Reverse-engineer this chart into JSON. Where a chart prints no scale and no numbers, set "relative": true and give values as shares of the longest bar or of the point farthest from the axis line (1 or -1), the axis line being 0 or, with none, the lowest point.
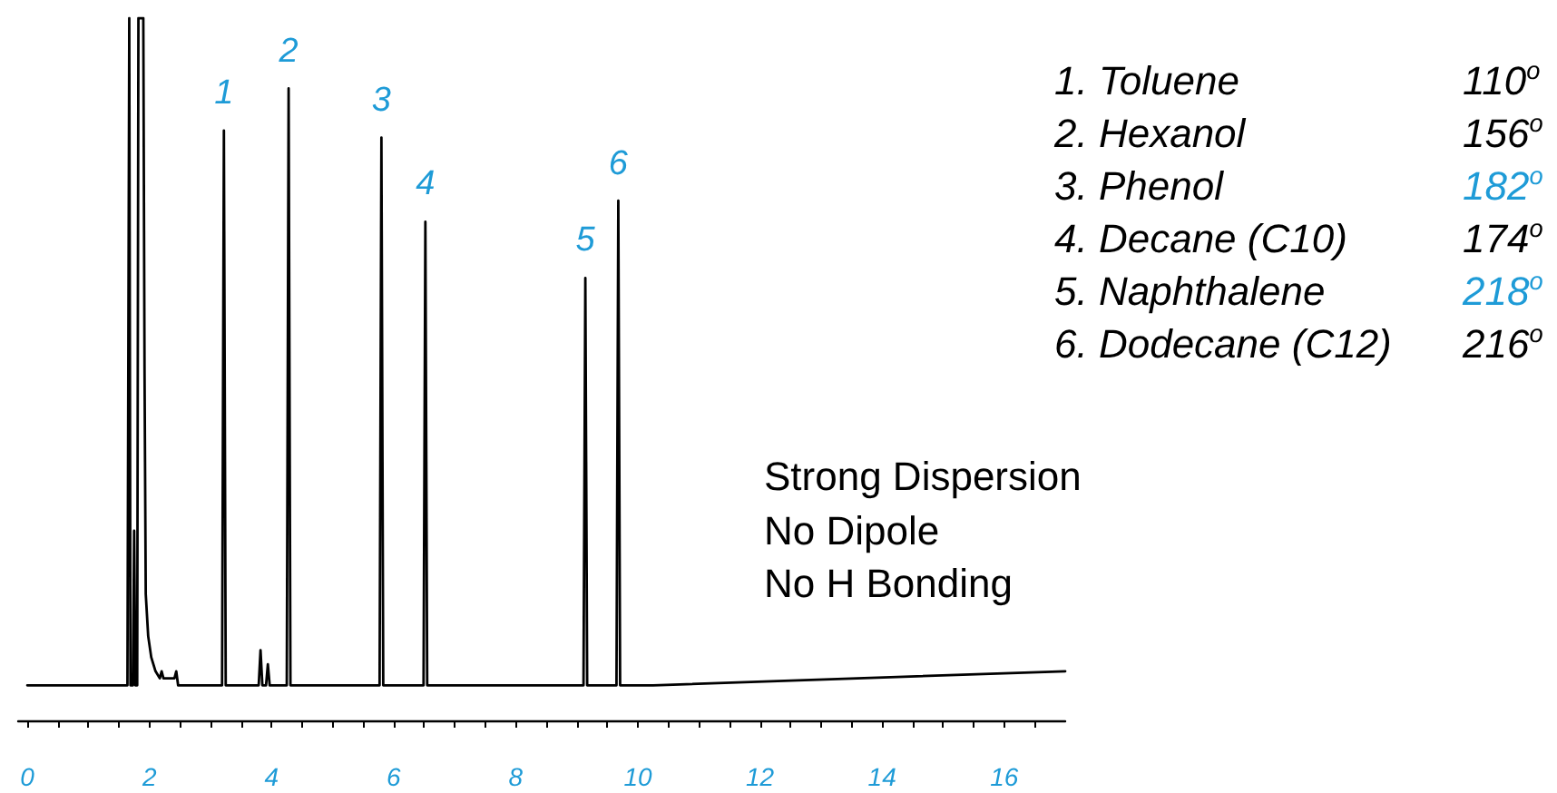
{
  "chart_data": {
    "type": "line",
    "relative": true,
    "color": "#000000",
    "x": [
      0,
      1.64,
      1.67,
      1.69,
      1.73,
      1.75,
      1.77,
      1.8,
      1.82,
      1.9,
      1.92,
      1.94,
      1.98,
      2.03,
      2.1,
      2.17,
      2.2,
      2.23,
      2.41,
      2.44,
      2.47,
      2.6,
      3.19,
      3.22,
      3.25,
      3.79,
      3.82,
      3.85,
      3.91,
      3.94,
      3.97,
      4.25,
      4.28,
      4.31,
      5.77,
      5.8,
      5.83,
      6.49,
      6.52,
      6.55,
      9.11,
      9.14,
      9.17,
      9.65,
      9.68,
      9.71,
      10.25,
      17
    ],
    "values": [
      0.05,
      0.05,
      1,
      0.05,
      0.05,
      0.27,
      0.05,
      0.05,
      1,
      1,
      0.5,
      0.18,
      0.12,
      0.09,
      0.07,
      0.06,
      0.07,
      0.06,
      0.06,
      0.07,
      0.05,
      0.05,
      0.05,
      0.84,
      0.05,
      0.05,
      0.1,
      0.05,
      0.05,
      0.08,
      0.05,
      0.05,
      0.9,
      0.05,
      0.05,
      0.83,
      0.05,
      0.05,
      0.71,
      0.05,
      0.05,
      0.63,
      0.05,
      0.05,
      0.74,
      0.05,
      0.05,
      0.07
    ],
    "xlim": [
      -0.15,
      17
    ],
    "xticks": [
      0,
      {
        "value": 0.5,
        "label": null
      },
      {
        "value": 1,
        "label": null
      },
      {
        "value": 1.5,
        "label": null
      },
      2,
      {
        "value": 2.5,
        "label": null
      },
      {
        "value": 3,
        "label": null
      },
      {
        "value": 3.5,
        "label": null
      },
      4,
      {
        "value": 4.5,
        "label": null
      },
      {
        "value": 5,
        "label": null
      },
      {
        "value": 5.5,
        "label": null
      },
      6,
      {
        "value": 6.5,
        "label": null
      },
      {
        "value": 7,
        "label": null
      },
      {
        "value": 7.5,
        "label": null
      },
      8,
      {
        "value": 8.5,
        "label": null
      },
      {
        "value": 9,
        "label": null
      },
      {
        "value": 9.5,
        "label": null
      },
      10,
      {
        "value": 10.5,
        "label": null
      },
      {
        "value": 11,
        "label": null
      },
      {
        "value": 11.5,
        "label": null
      },
      12,
      {
        "value": 12.5,
        "label": null
      },
      {
        "value": 13,
        "label": null
      },
      {
        "value": 13.5,
        "label": null
      },
      14,
      {
        "value": 14.5,
        "label": null
      },
      {
        "value": 15,
        "label": null
      },
      {
        "value": 15.5,
        "label": null
      },
      16,
      {
        "value": 16.5,
        "label": null
      }
    ],
    "annotations": [
      {
        "text": "1",
        "x": 3.22,
        "y": 0.84
      },
      {
        "text": "2",
        "x": 4.28,
        "y": 0.9
      },
      {
        "text": "3",
        "x": 5.8,
        "y": 0.83
      },
      {
        "text": "4",
        "x": 6.52,
        "y": 0.71
      },
      {
        "text": "5",
        "x": 9.14,
        "y": 0.63
      },
      {
        "text": "6",
        "x": 9.68,
        "y": 0.74
      },
      "1. Toluene",
      "110$^{o}$",
      "2. Hexanol",
      "156$^{o}$",
      "3. Phenol",
      "182$^{o}$",
      "4. Decane (C10)",
      "174$^{o}$",
      "5. Naphthalene",
      "218$^{o}$",
      "6. Dodecane (C12)",
      "216$^{o}$",
      "Strong Dispersion",
      "No Dipole",
      "No H Bonding"
    ]
  }
}
